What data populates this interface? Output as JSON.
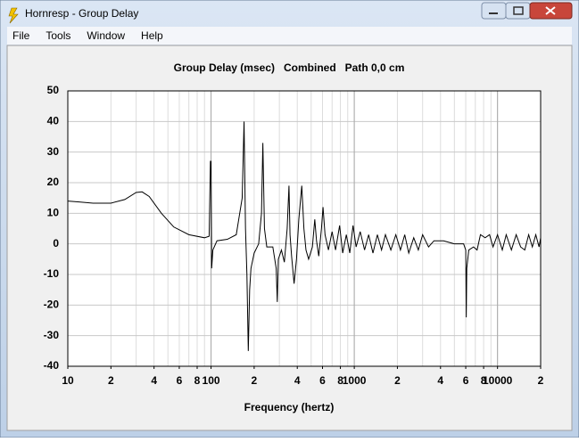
{
  "window": {
    "title": "Hornresp - Group Delay",
    "menu": [
      "File",
      "Tools",
      "Window",
      "Help"
    ]
  },
  "chart_data": {
    "type": "line",
    "title": "Group Delay (msec)   Combined   Path 0,0 cm",
    "x_label": "Frequency (hertz)",
    "x_scale": "log",
    "minor_grid": true,
    "grid": true,
    "color": "#000000",
    "xlim": [
      10,
      20000
    ],
    "xticks": [
      10,
      {
        "value": 20,
        "label": "2"
      },
      {
        "value": 40,
        "label": "4"
      },
      {
        "value": 60,
        "label": "6"
      },
      {
        "value": 80,
        "label": "8"
      },
      100,
      {
        "value": 200,
        "label": "2"
      },
      {
        "value": 400,
        "label": "4"
      },
      {
        "value": 600,
        "label": "6"
      },
      {
        "value": 800,
        "label": "8"
      },
      1000,
      {
        "value": 2000,
        "label": "2"
      },
      {
        "value": 4000,
        "label": "4"
      },
      {
        "value": 6000,
        "label": "6"
      },
      {
        "value": 8000,
        "label": "8"
      },
      10000,
      {
        "value": 20000,
        "label": "2"
      }
    ],
    "major_xgrid": [
      100,
      1000,
      10000
    ],
    "ylim": [
      -40,
      50
    ],
    "yticks": [
      50,
      40,
      30,
      20,
      10,
      0,
      -10,
      -20,
      -30,
      -40
    ],
    "x": [
      10,
      12,
      15,
      20,
      25,
      30,
      33,
      37,
      45,
      55,
      70,
      90,
      97,
      99,
      100,
      101,
      103,
      110,
      130,
      150,
      165,
      170,
      174,
      178,
      182,
      186,
      190,
      200,
      215,
      225,
      230,
      236,
      245,
      270,
      285,
      290,
      295,
      310,
      325,
      340,
      350,
      356,
      365,
      380,
      395,
      410,
      430,
      445,
      460,
      480,
      510,
      530,
      545,
      565,
      590,
      605,
      625,
      660,
      700,
      740,
      790,
      830,
      880,
      930,
      980,
      1030,
      1100,
      1180,
      1260,
      1350,
      1450,
      1550,
      1650,
      1800,
      1950,
      2100,
      2250,
      2400,
      2600,
      2800,
      3000,
      3300,
      3600,
      4200,
      5000,
      5800,
      6000,
      6050,
      6100,
      6300,
      6800,
      7200,
      7600,
      8200,
      8800,
      9300,
      10000,
      10800,
      11500,
      12500,
      13500,
      14500,
      15500,
      16500,
      17500,
      18500,
      19500,
      20000
    ],
    "values": [
      14,
      13.7,
      13.3,
      13.3,
      14.5,
      16.8,
      17,
      15.5,
      10,
      5.5,
      3,
      2,
      2.5,
      27,
      27,
      -8,
      -2,
      1,
      1.5,
      3,
      15,
      40,
      5,
      -10,
      -35,
      -15,
      -8,
      -3,
      0,
      10,
      33,
      5,
      -1,
      -1,
      -8,
      -19,
      -5,
      -2,
      -6,
      5,
      19,
      3,
      -4,
      -13,
      -5,
      8,
      19,
      5,
      -2,
      -5,
      -1,
      8,
      1,
      -4,
      5,
      12,
      3,
      -2,
      4,
      -2,
      6,
      -3,
      3,
      -3,
      6,
      -1,
      4,
      -2,
      3,
      -3,
      3,
      -2,
      3,
      -2,
      3,
      -2,
      3,
      -3,
      2,
      -2,
      3,
      -1,
      1,
      1,
      0,
      0,
      -2,
      -24,
      -8,
      -2,
      -1,
      -2,
      3,
      2,
      3,
      -1,
      3,
      -2,
      3,
      -2,
      3,
      -1,
      -2,
      3,
      -1,
      3,
      -1,
      2
    ]
  }
}
